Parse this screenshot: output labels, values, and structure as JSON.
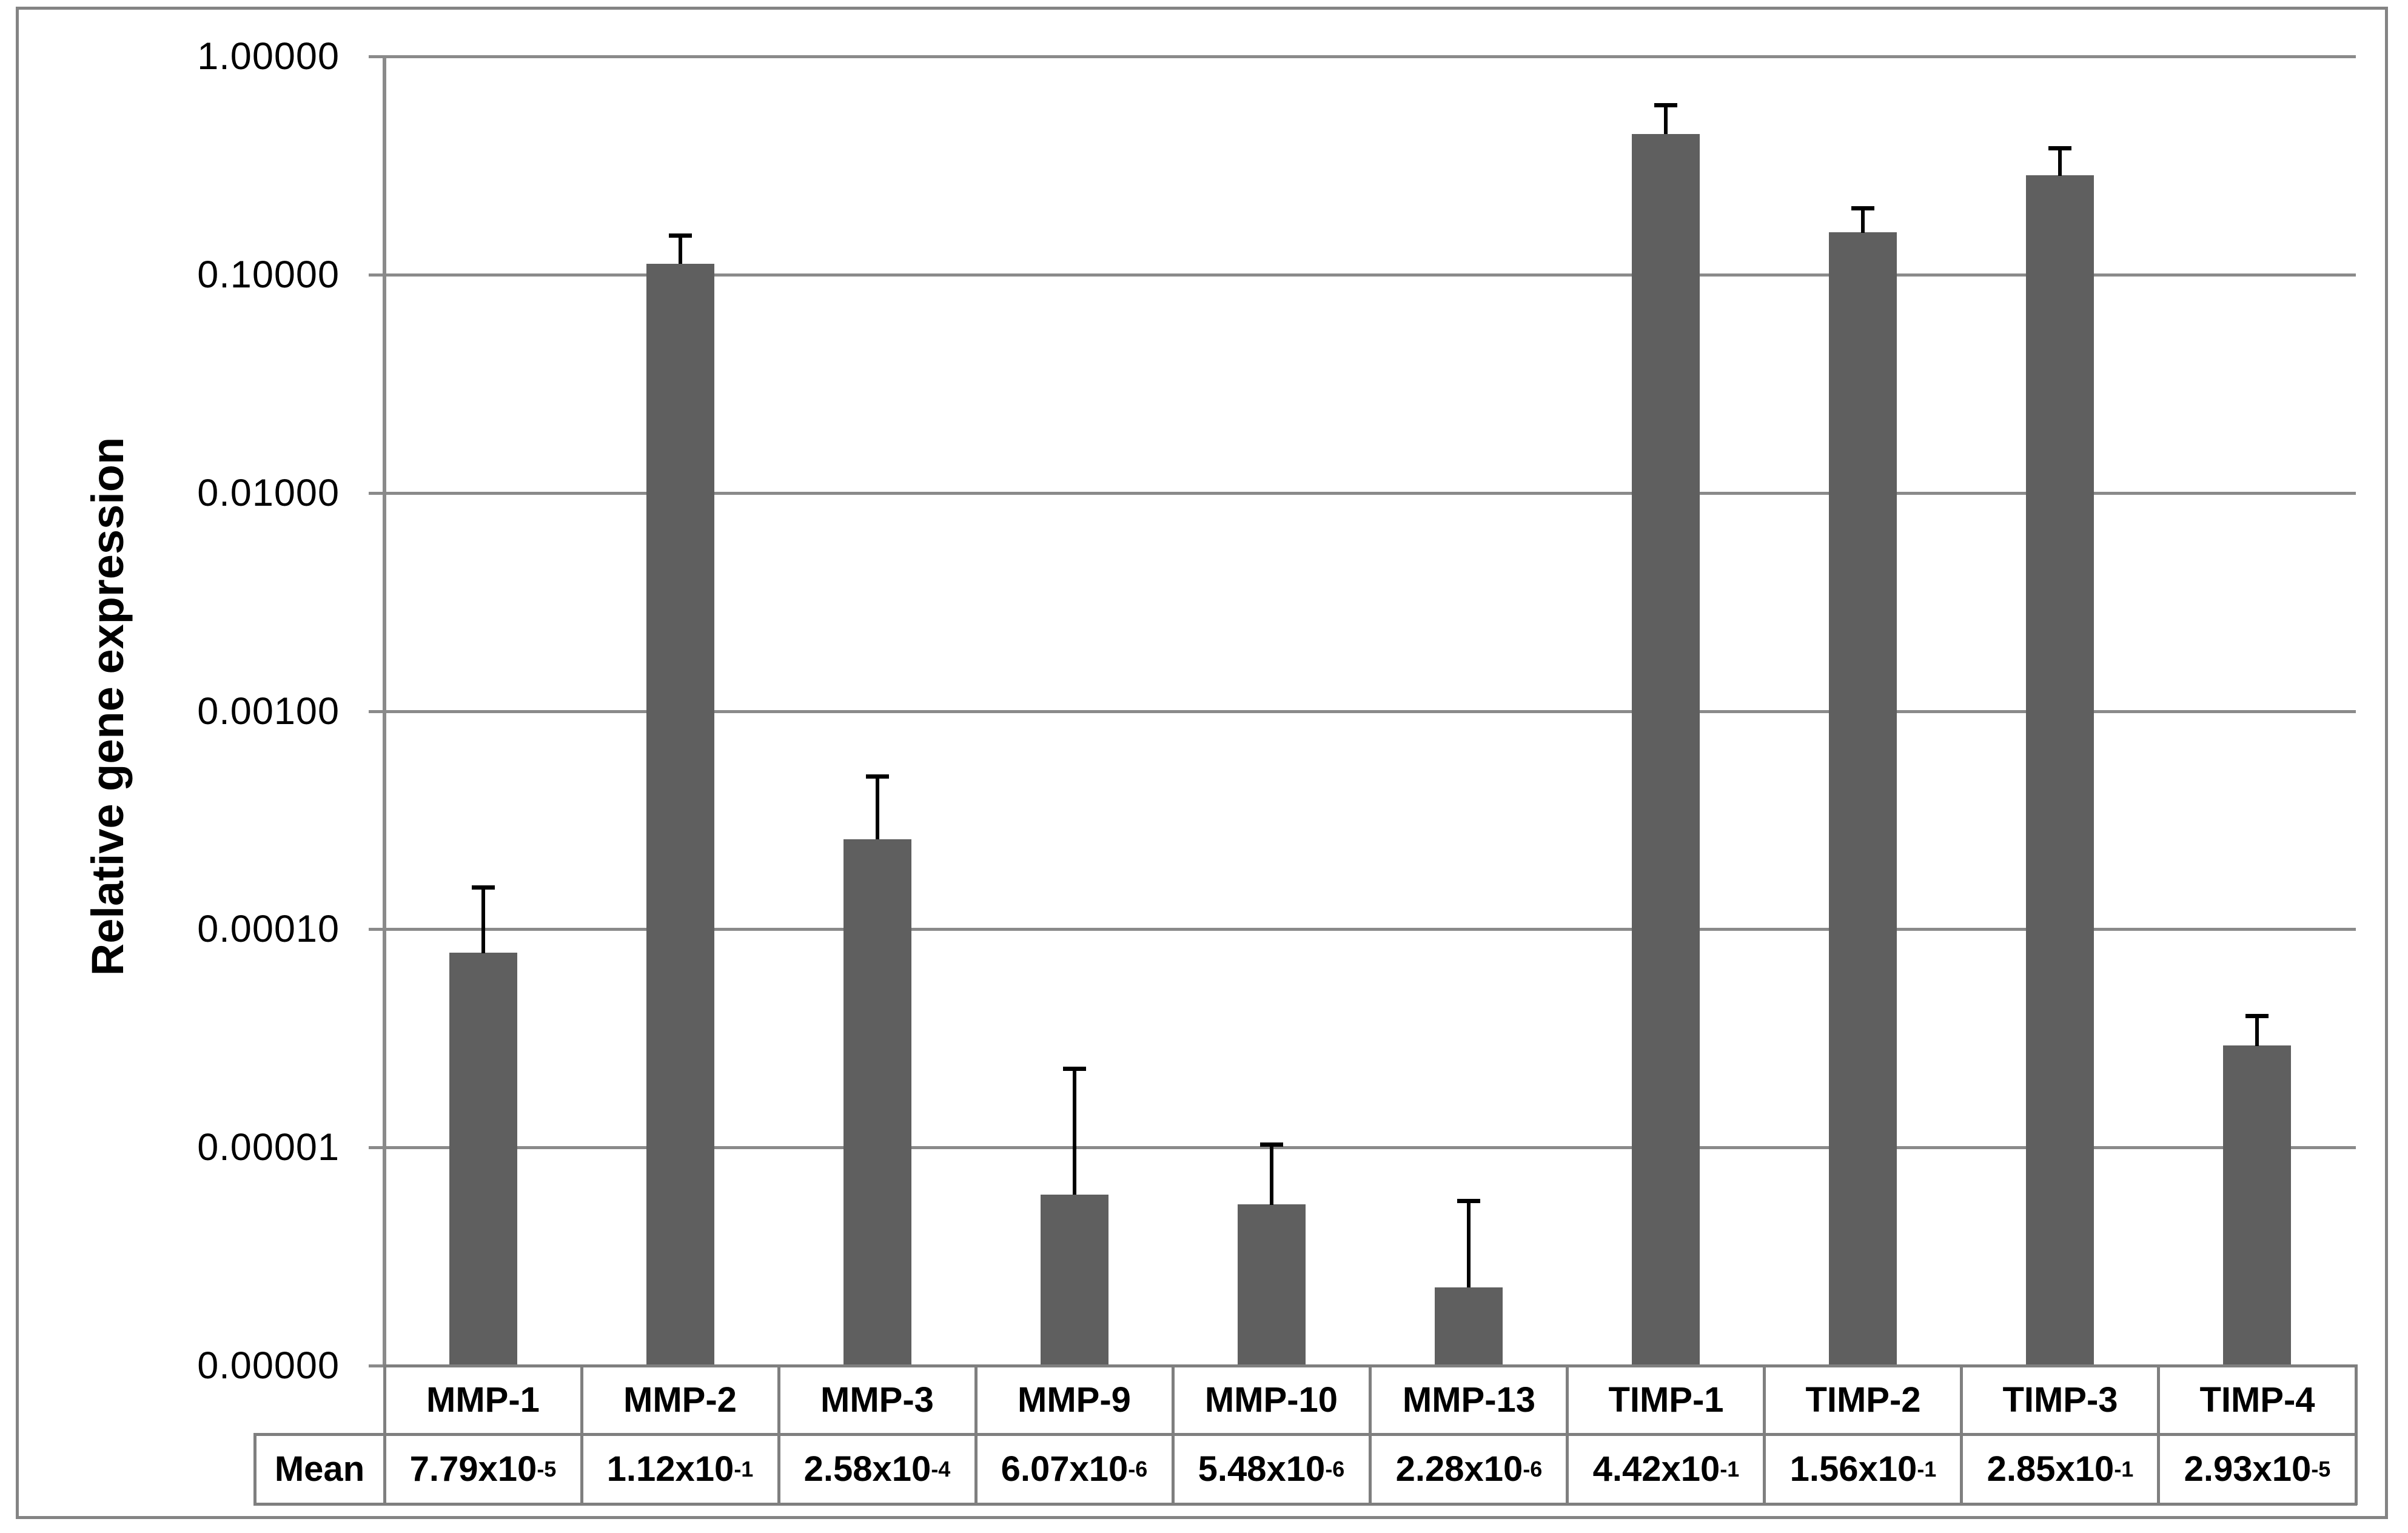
{
  "figure": {
    "background": "#ffffff",
    "border_color": "#848484"
  },
  "chart_data": {
    "type": "bar",
    "ylabel": "Relative gene expression",
    "xlabel": "",
    "yscale": "log",
    "ylim": [
      1e-06,
      1
    ],
    "grid": "horizontal-major",
    "legend": "none",
    "bar_color": "#5f5f5f",
    "gridline_color": "#8a8a8a",
    "table_border_color": "#7f7f7f",
    "error_bar_color": "#000000",
    "ytick_labels": [
      "1.00000",
      "0.10000",
      "0.01000",
      "0.00100",
      "0.00010",
      "0.00001",
      "0.00000"
    ],
    "categories": [
      "MMP-1",
      "MMP-2",
      "MMP-3",
      "MMP-9",
      "MMP-10",
      "MMP-13",
      "TIMP-1",
      "TIMP-2",
      "TIMP-3",
      "TIMP-4"
    ],
    "values": [
      7.79e-05,
      0.112,
      0.000258,
      6.07e-06,
      5.48e-06,
      2.28e-06,
      0.442,
      0.156,
      0.285,
      2.93e-05
    ],
    "error_bar_tops": [
      0.000155,
      0.151,
      0.0005,
      2.3e-05,
      1.03e-05,
      5.7e-06,
      0.596,
      0.201,
      0.379,
      4e-05
    ],
    "mean_row": {
      "header": "Mean",
      "cells": [
        {
          "base": "7.79x10",
          "sup": "-5"
        },
        {
          "base": "1.12x10",
          "sup": "-1"
        },
        {
          "base": "2.58x10",
          "sup": "-4"
        },
        {
          "base": "6.07x10",
          "sup": "-6"
        },
        {
          "base": "5.48x10",
          "sup": "-6"
        },
        {
          "base": "2.28x10",
          "sup": "-6"
        },
        {
          "base": "4.42x10",
          "sup": "-1"
        },
        {
          "base": "1.56x10",
          "sup": "-1"
        },
        {
          "base": "2.85x10",
          "sup": "-1"
        },
        {
          "base": "2.93x10",
          "sup": "-5"
        }
      ]
    }
  }
}
